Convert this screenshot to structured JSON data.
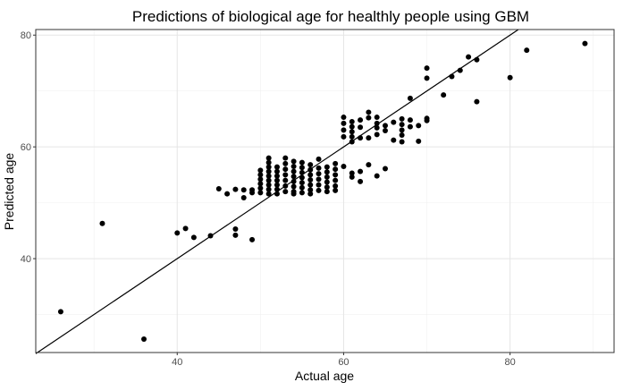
{
  "chart_data": {
    "type": "scatter",
    "title": "Predictions of biological age for healthly people using GBM",
    "xlabel": "Actual age",
    "ylabel": "Predicted age",
    "xlim": [
      23,
      92.5
    ],
    "ylim": [
      23.2,
      81
    ],
    "xticks": [
      40,
      60,
      80
    ],
    "yticks": [
      40,
      60,
      80
    ],
    "grid": true,
    "reference_line": {
      "slope": 1,
      "intercept": 0
    },
    "points": [
      [
        26,
        30.5
      ],
      [
        31,
        46.3
      ],
      [
        36,
        25.6
      ],
      [
        40,
        44.6
      ],
      [
        41,
        45.4
      ],
      [
        42,
        43.8
      ],
      [
        44,
        44.1
      ],
      [
        45,
        52.5
      ],
      [
        46,
        51.6
      ],
      [
        47,
        52.4
      ],
      [
        47,
        45.3
      ],
      [
        47,
        44.2
      ],
      [
        48,
        52.3
      ],
      [
        48,
        50.9
      ],
      [
        49,
        52.3
      ],
      [
        49,
        51.8
      ],
      [
        49,
        43.4
      ],
      [
        50,
        55.8
      ],
      [
        50,
        55.0
      ],
      [
        50,
        54.2
      ],
      [
        50,
        53.4
      ],
      [
        50,
        52.6
      ],
      [
        50,
        51.8
      ],
      [
        51,
        58.0
      ],
      [
        51,
        57.2
      ],
      [
        51,
        56.4
      ],
      [
        51,
        55.6
      ],
      [
        51,
        54.8
      ],
      [
        51,
        54.0
      ],
      [
        51,
        53.2
      ],
      [
        51,
        52.4
      ],
      [
        51,
        51.6
      ],
      [
        52,
        56.4
      ],
      [
        52,
        55.6
      ],
      [
        52,
        54.8
      ],
      [
        52,
        54.0
      ],
      [
        52,
        53.2
      ],
      [
        52,
        52.4
      ],
      [
        52,
        51.6
      ],
      [
        53,
        58.0
      ],
      [
        53,
        57.0
      ],
      [
        53,
        56.0
      ],
      [
        53,
        55.0
      ],
      [
        53,
        54.0
      ],
      [
        53,
        53.0
      ],
      [
        53,
        52.0
      ],
      [
        54,
        57.4
      ],
      [
        54,
        56.5
      ],
      [
        54,
        55.6
      ],
      [
        54,
        54.7
      ],
      [
        54,
        53.8
      ],
      [
        54,
        52.9
      ],
      [
        54,
        52.0
      ],
      [
        54,
        51.6
      ],
      [
        55,
        57.2
      ],
      [
        55,
        56.3
      ],
      [
        55,
        55.4
      ],
      [
        55,
        54.5
      ],
      [
        55,
        53.6
      ],
      [
        55,
        52.7
      ],
      [
        55,
        51.8
      ],
      [
        56,
        56.8
      ],
      [
        56,
        55.9
      ],
      [
        56,
        55.0
      ],
      [
        56,
        54.1
      ],
      [
        56,
        53.2
      ],
      [
        56,
        52.3
      ],
      [
        56,
        51.6
      ],
      [
        57,
        57.8
      ],
      [
        57,
        56.2
      ],
      [
        57,
        55.2
      ],
      [
        57,
        54.2
      ],
      [
        57,
        53.2
      ],
      [
        57,
        52.2
      ],
      [
        58,
        56.4
      ],
      [
        58,
        55.5
      ],
      [
        58,
        54.6
      ],
      [
        58,
        53.7
      ],
      [
        58,
        52.8
      ],
      [
        58,
        52.0
      ],
      [
        59,
        57.0
      ],
      [
        59,
        56.0
      ],
      [
        59,
        55.0
      ],
      [
        59,
        54.0
      ],
      [
        59,
        53.0
      ],
      [
        59,
        52.2
      ],
      [
        60,
        65.3
      ],
      [
        60,
        64.2
      ],
      [
        60,
        63.0
      ],
      [
        60,
        61.8
      ],
      [
        60,
        56.5
      ],
      [
        61,
        64.5
      ],
      [
        61,
        63.6
      ],
      [
        61,
        62.7
      ],
      [
        61,
        61.8
      ],
      [
        61,
        60.9
      ],
      [
        61,
        55.3
      ],
      [
        61,
        54.6
      ],
      [
        62,
        64.8
      ],
      [
        62,
        63.5
      ],
      [
        62,
        61.6
      ],
      [
        62,
        55.6
      ],
      [
        62,
        53.8
      ],
      [
        63,
        66.2
      ],
      [
        63,
        65.2
      ],
      [
        63,
        61.6
      ],
      [
        63,
        56.8
      ],
      [
        64,
        65.3
      ],
      [
        64,
        64.2
      ],
      [
        64,
        63.4
      ],
      [
        64,
        62.2
      ],
      [
        64,
        54.8
      ],
      [
        65,
        63.8
      ],
      [
        65,
        62.9
      ],
      [
        65,
        56.1
      ],
      [
        66,
        64.4
      ],
      [
        66,
        61.2
      ],
      [
        67,
        65.0
      ],
      [
        67,
        64.0
      ],
      [
        67,
        63.0
      ],
      [
        67,
        62.1
      ],
      [
        67,
        60.9
      ],
      [
        68,
        68.7
      ],
      [
        68,
        64.8
      ],
      [
        68,
        63.6
      ],
      [
        69,
        63.8
      ],
      [
        69,
        61.0
      ],
      [
        70,
        74.1
      ],
      [
        70,
        72.3
      ],
      [
        70,
        65.1
      ],
      [
        70,
        64.7
      ],
      [
        72,
        69.3
      ],
      [
        73,
        72.6
      ],
      [
        74,
        73.7
      ],
      [
        75,
        76.1
      ],
      [
        76,
        75.6
      ],
      [
        76,
        68.1
      ],
      [
        80,
        72.4
      ],
      [
        82,
        77.3
      ],
      [
        89,
        78.5
      ]
    ]
  }
}
